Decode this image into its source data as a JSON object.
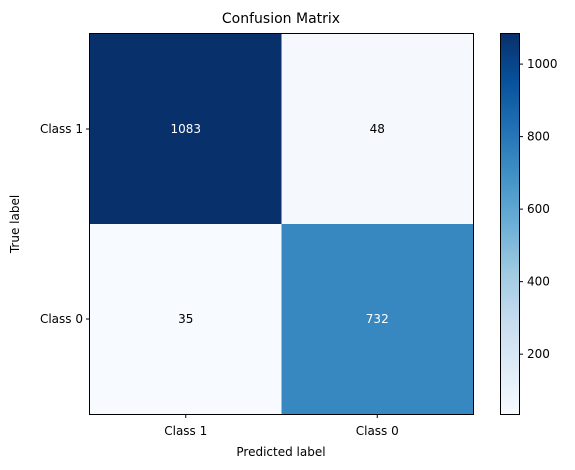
{
  "chart_data": {
    "type": "heatmap",
    "title": "Confusion Matrix",
    "xlabel": "Predicted label",
    "ylabel": "True label",
    "x_categories": [
      "Class 1",
      "Class 0"
    ],
    "y_categories": [
      "Class 1",
      "Class 0"
    ],
    "values": [
      [
        1083,
        48
      ],
      [
        35,
        732
      ]
    ],
    "colormap": "Blues",
    "color_range": [
      35,
      1083
    ],
    "colorbar_ticks": [
      200,
      400,
      600,
      800,
      1000
    ],
    "grid": false,
    "text_color_dark": "#ffffff",
    "text_color_light": "#000000"
  }
}
